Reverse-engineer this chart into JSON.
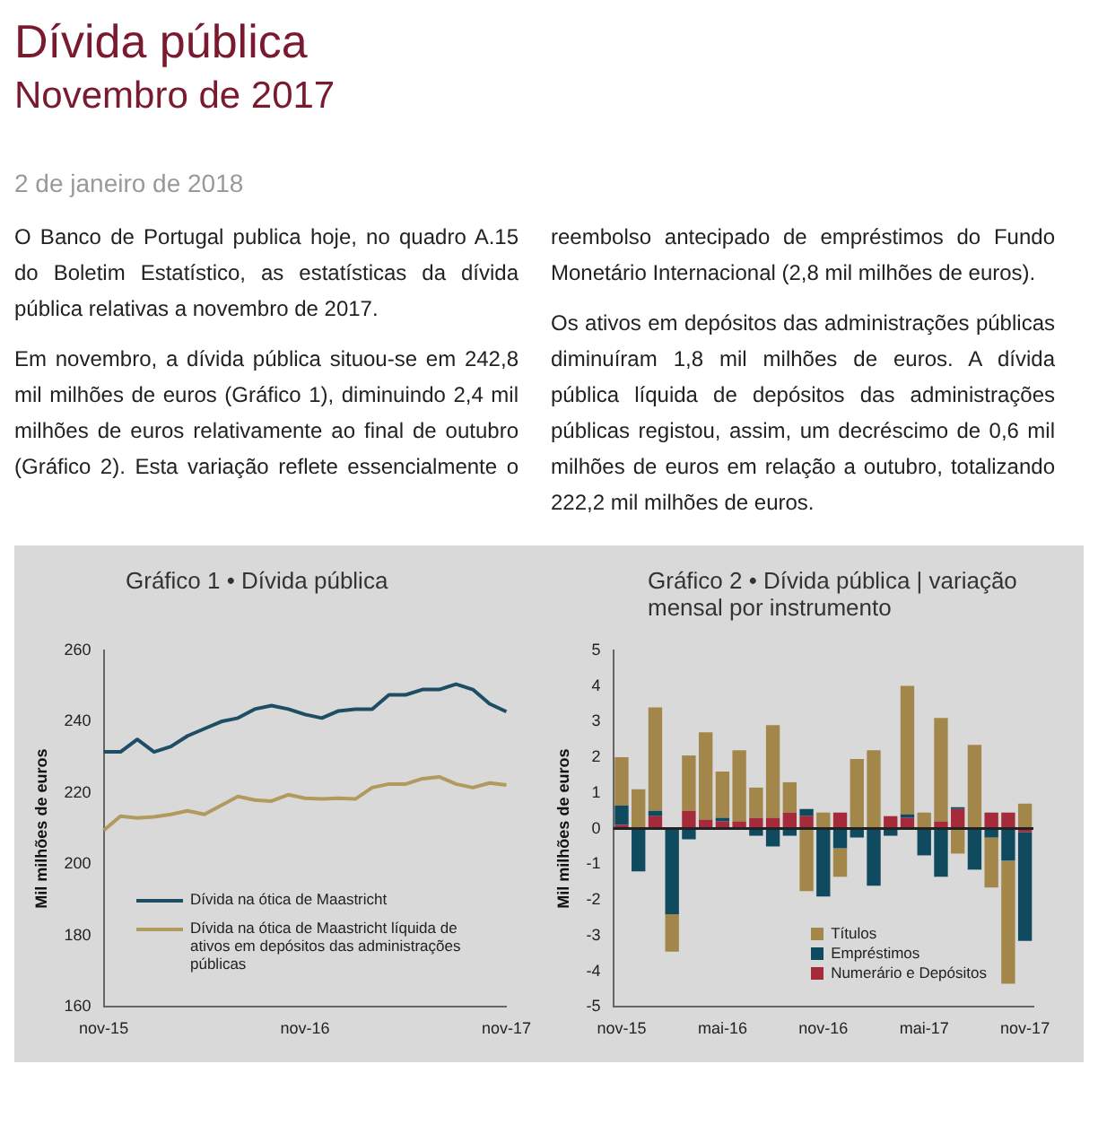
{
  "chart_data": [
    {
      "type": "other",
      "title": "Dívida pública",
      "subtitle": "Novembro de 2017",
      "annotations": [
        "2 de janeiro de 2018",
        "O Banco de Portugal publica hoje, no quadro A.15 do Boletim Estatístico, as estatísticas da dívida pública relativas a novembro de 2017.",
        "Em novembro, a dívida pública situou-se em 242,8 mil milhões de euros (Gráfico 1), diminuindo 2,4 mil milhões de euros relativamente ao final de outubro (Gráfico 2). Esta variação reflete essencialmente o reembolso antecipado de empréstimos do Fundo Monetário Internacional (2,8 mil milhões de euros).",
        "Os ativos em depósitos das administrações públicas diminuíram 1,8 mil milhões de euros. A dívida pública líquida de depósitos das administrações públicas registou, assim, um decréscimo de 0,6 mil milhões de euros em relação a outubro, totalizando 222,2 mil milhões de euros."
      ]
    },
    {
      "type": "line",
      "title": "Gráfico 1 • Dívida pública",
      "ylabel": "Mil milhões de euros",
      "categories": [
        "nov-15",
        null,
        null,
        null,
        null,
        null,
        null,
        null,
        null,
        null,
        null,
        null,
        "nov-16",
        null,
        null,
        null,
        null,
        null,
        null,
        null,
        null,
        null,
        null,
        null,
        "nov-17"
      ],
      "series": [
        {
          "name": "Dívida na ótica de Maastricht",
          "color": "#1d4e63",
          "values": [
            231.5,
            231.5,
            235,
            231.5,
            233,
            236,
            238,
            240,
            241,
            243.5,
            244.5,
            243.5,
            242,
            241,
            243,
            243.5,
            243.5,
            247.5,
            247.5,
            249,
            249,
            250.5,
            249,
            245,
            242.8
          ]
        },
        {
          "name": "Dívida na ótica de Maastricht líquida de ativos em depósitos das administrações públicas",
          "color": "#b09a5e",
          "values": [
            209.5,
            213.5,
            213,
            213.3,
            214,
            215,
            214,
            216.5,
            219,
            218,
            217.7,
            219.5,
            218.5,
            218.3,
            218.5,
            218.3,
            221.5,
            222.5,
            222.5,
            224,
            224.5,
            222.5,
            221.5,
            222.8,
            222.2
          ]
        }
      ],
      "ylim": [
        160,
        260
      ],
      "yticks": [
        160,
        180,
        200,
        220,
        240,
        260
      ],
      "legend": "bottom left",
      "marker": "none"
    },
    {
      "type": "bar",
      "stacked": true,
      "title": "Gráfico 2 • Dívida pública | variação mensal por instrumento",
      "ylabel": "Mil milhões de euros",
      "categories": [
        "nov-15",
        null,
        null,
        null,
        null,
        null,
        "mai-16",
        null,
        null,
        null,
        null,
        null,
        "nov-16",
        null,
        null,
        null,
        null,
        null,
        "mai-17",
        null,
        null,
        null,
        null,
        null,
        "nov-17"
      ],
      "series": [
        {
          "name": "Numerário e Depósitos",
          "color": "#a52a3a",
          "values": [
            0.1,
            0,
            0.35,
            0,
            0.5,
            0.25,
            0.2,
            0.2,
            0.3,
            0.3,
            0.45,
            0.35,
            null,
            0.45,
            null,
            0,
            0.35,
            0.3,
            0,
            0.2,
            0.55,
            null,
            0.45,
            0.45,
            -0.1
          ]
        },
        {
          "name": "Empréstimos",
          "color": "#0f4a5f",
          "values": [
            0.55,
            -1.2,
            0.15,
            -2.4,
            -0.3,
            0,
            0.1,
            0,
            -0.2,
            -0.5,
            -0.2,
            0.2,
            -1.9,
            -0.55,
            -0.25,
            -1.6,
            -0.2,
            0.1,
            -0.75,
            -1.35,
            0.05,
            -1.15,
            -0.25,
            -0.9,
            -3.05
          ]
        },
        {
          "name": "Títulos",
          "color": "#a3874a",
          "values": [
            1.35,
            1.1,
            2.9,
            -1.05,
            1.55,
            2.45,
            1.3,
            2.0,
            0.85,
            2.6,
            0.85,
            -1.75,
            0.45,
            -0.8,
            1.95,
            2.2,
            0,
            3.6,
            0.45,
            2.9,
            -0.7,
            2.35,
            -1.4,
            -3.45,
            0.7
          ]
        }
      ],
      "ylim": [
        -5,
        5
      ],
      "yticks": [
        -5,
        -4,
        -3,
        -2,
        -1,
        0,
        1,
        2,
        3,
        4,
        5
      ],
      "legend": "bottom right",
      "ref_lines": [
        {
          "axis": "y",
          "value": 0,
          "color": "#222222"
        }
      ]
    }
  ]
}
